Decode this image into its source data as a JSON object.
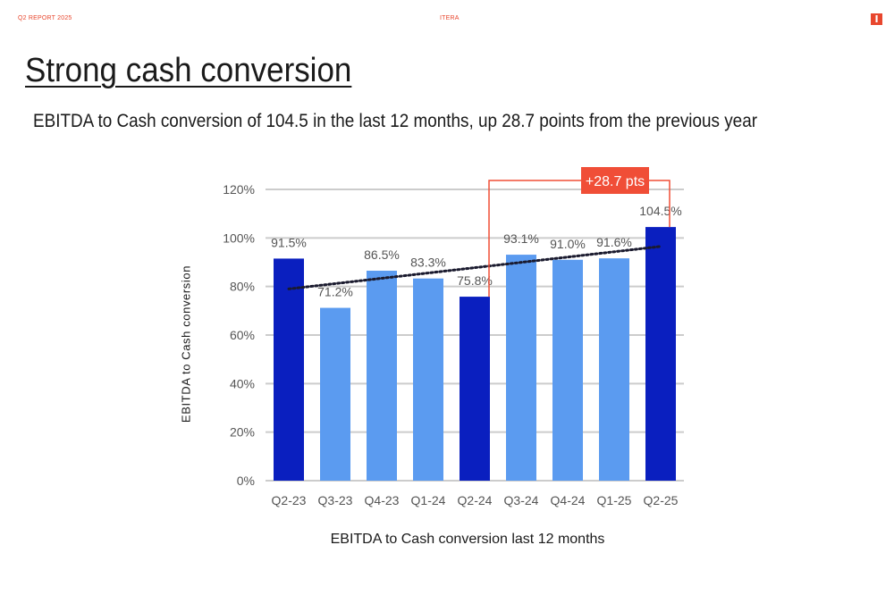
{
  "header": {
    "report_label": "Q2 REPORT 2025",
    "brand": "ITERA",
    "logo_glyph": "I",
    "accent_color": "#e8472e"
  },
  "slide": {
    "title": "Strong cash conversion",
    "subtitle": "EBITDA to Cash conversion of 104.5 in the last 12 months, up 28.7 points from the previous year"
  },
  "chart_data": {
    "type": "bar",
    "categories": [
      "Q2-23",
      "Q3-23",
      "Q4-23",
      "Q1-24",
      "Q2-24",
      "Q3-24",
      "Q4-24",
      "Q1-25",
      "Q2-25"
    ],
    "values": [
      91.5,
      71.2,
      86.5,
      83.3,
      75.8,
      93.1,
      91.0,
      91.6,
      104.5
    ],
    "data_labels": [
      "91.5%",
      "71.2%",
      "86.5%",
      "83.3%",
      "75.8%",
      "93.1%",
      "91.0%",
      "91.6%",
      "104.5%"
    ],
    "highlighted": [
      true,
      false,
      false,
      false,
      true,
      false,
      false,
      false,
      true
    ],
    "colors": {
      "highlight": "#0a1fbf",
      "normal": "#5b9bf0",
      "grid": "#cccccc",
      "trend": "#1a1a2e",
      "annotation": "#f04e37"
    },
    "xlabel": "EBITDA to Cash conversion last 12 months",
    "ylabel": "EBITDA to Cash conversion",
    "ylim": [
      0,
      120
    ],
    "yticks": [
      0,
      20,
      40,
      60,
      80,
      100,
      120
    ],
    "ytick_labels": [
      "0%",
      "20%",
      "40%",
      "60%",
      "80%",
      "100%",
      "120%"
    ],
    "grid": true,
    "trendline": {
      "style": "dotted",
      "start": 79,
      "end": 96.5
    },
    "annotation": {
      "text": "+28.7 pts",
      "from": "Q2-24",
      "to": "Q2-25"
    }
  }
}
